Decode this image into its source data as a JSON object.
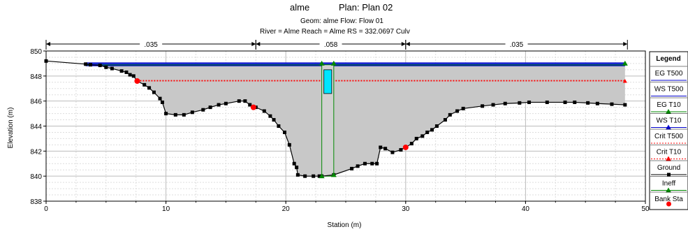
{
  "header": {
    "title_left": "alme",
    "title_right": "Plan: Plan 02",
    "line2": "Geom: alme    Flow: Flow 01",
    "line3": "River = Alme   Reach = Alme       RS = 332.0697 Culv"
  },
  "legend": {
    "title": "Legend",
    "items": [
      {
        "label": "EG T500",
        "color": "#0000cc",
        "marker": "none",
        "style": "solid"
      },
      {
        "label": "WS T500",
        "color": "#0000cc",
        "marker": "none",
        "style": "solid"
      },
      {
        "label": "EG T10",
        "color": "#008800",
        "marker": "triangle",
        "style": "solid"
      },
      {
        "label": "WS T10",
        "color": "#0000cc",
        "marker": "triangle",
        "style": "solid"
      },
      {
        "label": "Crit T500",
        "color": "#ff0000",
        "marker": "none",
        "style": "dotted"
      },
      {
        "label": "Crit T10",
        "color": "#ff0000",
        "marker": "triangle",
        "style": "dotted"
      },
      {
        "label": "Ground",
        "color": "#000000",
        "marker": "square",
        "style": "solid"
      },
      {
        "label": "Ineff",
        "color": "#008800",
        "marker": "triangle",
        "style": "solid"
      },
      {
        "label": "Bank Sta",
        "color": "#ff0000",
        "marker": "circle",
        "style": "none"
      }
    ]
  },
  "chart_data": {
    "type": "line",
    "xlabel": "Station (m)",
    "ylabel": "Elevation (m)",
    "xlim": [
      0,
      50
    ],
    "ylim": [
      838,
      850
    ],
    "x_ticks": [
      0,
      10,
      20,
      30,
      40,
      50
    ],
    "y_ticks": [
      838,
      840,
      842,
      844,
      846,
      848,
      850
    ],
    "grid": true,
    "legend_position": "right",
    "manning": [
      {
        "label": ".035",
        "from": 0,
        "to": 17.5
      },
      {
        "label": ".058",
        "from": 17.5,
        "to": 30
      },
      {
        "label": ".035",
        "from": 30,
        "to": 48.5
      }
    ],
    "ground": [
      [
        0,
        849.2
      ],
      [
        3.3,
        848.95
      ],
      [
        3.7,
        848.9
      ],
      [
        4.5,
        848.85
      ],
      [
        5.0,
        848.7
      ],
      [
        5.5,
        848.6
      ],
      [
        6.3,
        848.4
      ],
      [
        6.7,
        848.3
      ],
      [
        7.0,
        848.1
      ],
      [
        7.3,
        848.0
      ],
      [
        7.6,
        847.6
      ],
      [
        8.2,
        847.3
      ],
      [
        8.6,
        847.05
      ],
      [
        9.0,
        846.7
      ],
      [
        9.5,
        846.2
      ],
      [
        9.7,
        845.9
      ],
      [
        10.0,
        845.0
      ],
      [
        10.8,
        844.9
      ],
      [
        11.5,
        844.9
      ],
      [
        12.2,
        845.1
      ],
      [
        13.1,
        845.3
      ],
      [
        13.7,
        845.5
      ],
      [
        14.4,
        845.7
      ],
      [
        15.0,
        845.8
      ],
      [
        16.1,
        846.0
      ],
      [
        16.6,
        846.0
      ],
      [
        17.0,
        845.7
      ],
      [
        17.5,
        845.5
      ],
      [
        18.2,
        845.2
      ],
      [
        18.7,
        844.8
      ],
      [
        19.0,
        844.5
      ],
      [
        19.4,
        844.0
      ],
      [
        19.9,
        843.5
      ],
      [
        20.3,
        842.5
      ],
      [
        20.7,
        841.0
      ],
      [
        20.9,
        840.7
      ],
      [
        21.0,
        840.1
      ],
      [
        21.6,
        840.0
      ],
      [
        22.3,
        840.0
      ],
      [
        22.8,
        840.0
      ],
      [
        23.0,
        840.0
      ],
      [
        24.0,
        840.1
      ],
      [
        25.5,
        840.6
      ],
      [
        26.0,
        840.8
      ],
      [
        26.6,
        841.0
      ],
      [
        27.2,
        841.0
      ],
      [
        27.6,
        841.0
      ],
      [
        27.9,
        842.3
      ],
      [
        28.3,
        842.2
      ],
      [
        28.9,
        841.9
      ],
      [
        29.6,
        842.1
      ],
      [
        30.0,
        842.3
      ],
      [
        30.5,
        842.6
      ],
      [
        30.9,
        843.0
      ],
      [
        31.4,
        843.2
      ],
      [
        31.8,
        843.5
      ],
      [
        32.2,
        843.7
      ],
      [
        32.6,
        844.0
      ],
      [
        33.3,
        844.5
      ],
      [
        33.7,
        844.9
      ],
      [
        34.3,
        845.2
      ],
      [
        34.8,
        845.4
      ],
      [
        36.4,
        845.6
      ],
      [
        37.3,
        845.7
      ],
      [
        38.3,
        845.8
      ],
      [
        39.5,
        845.85
      ],
      [
        40.3,
        845.9
      ],
      [
        41.8,
        845.9
      ],
      [
        43.3,
        845.9
      ],
      [
        44.1,
        845.9
      ],
      [
        45.2,
        845.85
      ],
      [
        46.0,
        845.8
      ],
      [
        47.2,
        845.75
      ],
      [
        48.3,
        845.7
      ]
    ],
    "series": [
      {
        "name": "EG T500",
        "y": 849.05
      },
      {
        "name": "WS T500",
        "y": 848.95
      },
      {
        "name": "EG T10",
        "y": 848.88
      },
      {
        "name": "WS T10",
        "y": 848.82
      },
      {
        "name": "Crit T500",
        "y": 847.65
      },
      {
        "name": "Crit T10",
        "y": 847.6
      }
    ],
    "culvert": {
      "x_left": 23.0,
      "x_right": 24.0,
      "bottom": 840.0,
      "top": 848.9,
      "water_from": 846.6,
      "water_to": 848.5
    },
    "bank_stations": [
      [
        7.6,
        847.6
      ],
      [
        17.3,
        845.5
      ],
      [
        30.0,
        842.3
      ]
    ],
    "ineff": [
      [
        23.0,
        849.0
      ],
      [
        24.0,
        849.0
      ],
      [
        23.0,
        840.0
      ],
      [
        24.0,
        840.1
      ],
      [
        48.3,
        849.0
      ]
    ]
  }
}
